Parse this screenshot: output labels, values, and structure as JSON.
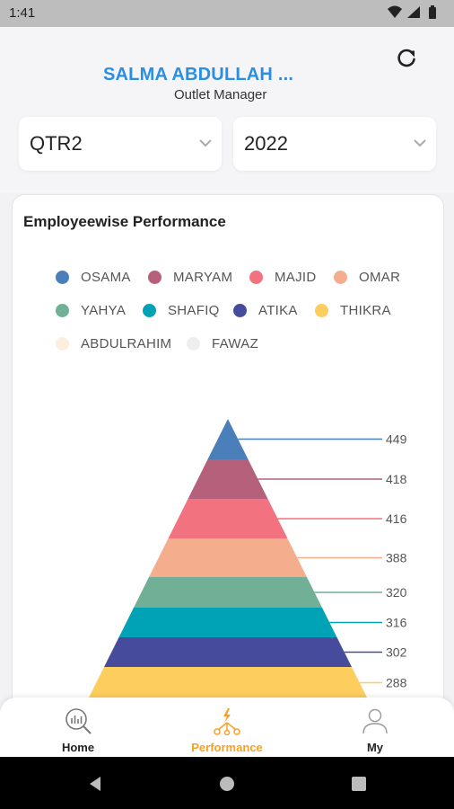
{
  "status": {
    "time": "1:41"
  },
  "header": {
    "user_name": "SALMA ABDULLAH ...",
    "user_role": "Outlet Manager"
  },
  "filters": {
    "quarter": "QTR2",
    "year": "2022"
  },
  "card": {
    "title": "Employeewise Performance"
  },
  "legend": [
    {
      "name": "OSAMA",
      "color": "#4a7fb9"
    },
    {
      "name": "MARYAM",
      "color": "#b5617c"
    },
    {
      "name": "MAJID",
      "color": "#f2737f"
    },
    {
      "name": "OMAR",
      "color": "#f5ae8d"
    },
    {
      "name": "YAHYA",
      "color": "#71b097"
    },
    {
      "name": "SHAFIQ",
      "color": "#00a3b6"
    },
    {
      "name": "ATIKA",
      "color": "#464b9b"
    },
    {
      "name": "THIKRA",
      "color": "#fdcd5d"
    },
    {
      "name": "ABDULRAHIM",
      "color": "#fdeedd"
    },
    {
      "name": "FAWAZ",
      "color": "#eeeeee"
    }
  ],
  "chart_data": {
    "type": "pyramid",
    "categories": [
      "OSAMA",
      "MARYAM",
      "MAJID",
      "OMAR",
      "YAHYA",
      "SHAFIQ",
      "ATIKA",
      "THIKRA"
    ],
    "values": [
      449,
      418,
      416,
      388,
      320,
      316,
      302,
      288
    ]
  },
  "nav": {
    "home": "Home",
    "performance": "Performance",
    "my": "My"
  },
  "colors": {
    "accent": "#f5a026",
    "brand_blue": "#2a8ee5"
  }
}
